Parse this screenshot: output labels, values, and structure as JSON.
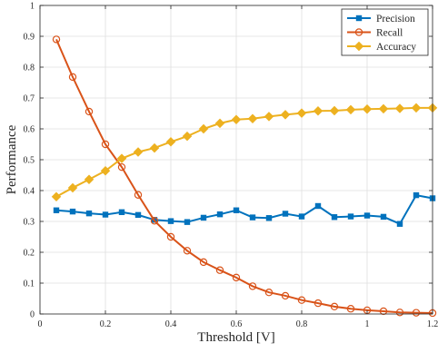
{
  "chart_data": {
    "type": "line",
    "title": "",
    "xlabel": "Threshold [V]",
    "ylabel": "Performance",
    "xlim": [
      0,
      1.2
    ],
    "ylim": [
      0,
      1
    ],
    "grid": true,
    "legend_position": "top-right",
    "x": [
      0.05,
      0.1,
      0.15,
      0.2,
      0.25,
      0.3,
      0.35,
      0.4,
      0.45,
      0.5,
      0.55,
      0.6,
      0.65,
      0.7,
      0.75,
      0.8,
      0.85,
      0.9,
      0.95,
      1.0,
      1.05,
      1.1,
      1.15,
      1.2
    ],
    "x_ticks": [
      {
        "value": 0,
        "label": "0"
      },
      {
        "value": 0.2,
        "label": "0.2"
      },
      {
        "value": 0.4,
        "label": "0.4"
      },
      {
        "value": 0.6,
        "label": "0.6"
      },
      {
        "value": 0.8,
        "label": "0.8"
      },
      {
        "value": 1.0,
        "label": "1"
      },
      {
        "value": 1.2,
        "label": "1.2"
      }
    ],
    "y_ticks": [
      {
        "value": 0,
        "label": "0"
      },
      {
        "value": 0.1,
        "label": "0.1"
      },
      {
        "value": 0.2,
        "label": "0.2"
      },
      {
        "value": 0.3,
        "label": "0.3"
      },
      {
        "value": 0.4,
        "label": "0.4"
      },
      {
        "value": 0.5,
        "label": "0.5"
      },
      {
        "value": 0.6,
        "label": "0.6"
      },
      {
        "value": 0.7,
        "label": "0.7"
      },
      {
        "value": 0.8,
        "label": "0.8"
      },
      {
        "value": 0.9,
        "label": "0.9"
      },
      {
        "value": 1.0,
        "label": "1"
      }
    ],
    "series": [
      {
        "name": "Precision",
        "color": "#0072BD",
        "marker": "square",
        "values": [
          0.336,
          0.332,
          0.326,
          0.322,
          0.33,
          0.321,
          0.305,
          0.301,
          0.298,
          0.312,
          0.323,
          0.336,
          0.313,
          0.311,
          0.325,
          0.316,
          0.35,
          0.314,
          0.316,
          0.319,
          0.315,
          0.292,
          0.385,
          0.375
        ]
      },
      {
        "name": "Recall",
        "color": "#D95319",
        "marker": "circle",
        "values": [
          0.89,
          0.768,
          0.656,
          0.55,
          0.476,
          0.386,
          0.302,
          0.25,
          0.205,
          0.168,
          0.142,
          0.118,
          0.09,
          0.07,
          0.059,
          0.045,
          0.035,
          0.024,
          0.017,
          0.012,
          0.009,
          0.005,
          0.004,
          0.003
        ]
      },
      {
        "name": "Accuracy",
        "color": "#EDB120",
        "marker": "diamond",
        "values": [
          0.38,
          0.409,
          0.436,
          0.464,
          0.504,
          0.525,
          0.538,
          0.558,
          0.576,
          0.6,
          0.618,
          0.63,
          0.633,
          0.64,
          0.646,
          0.651,
          0.658,
          0.659,
          0.662,
          0.664,
          0.665,
          0.666,
          0.668,
          0.668
        ]
      }
    ]
  }
}
